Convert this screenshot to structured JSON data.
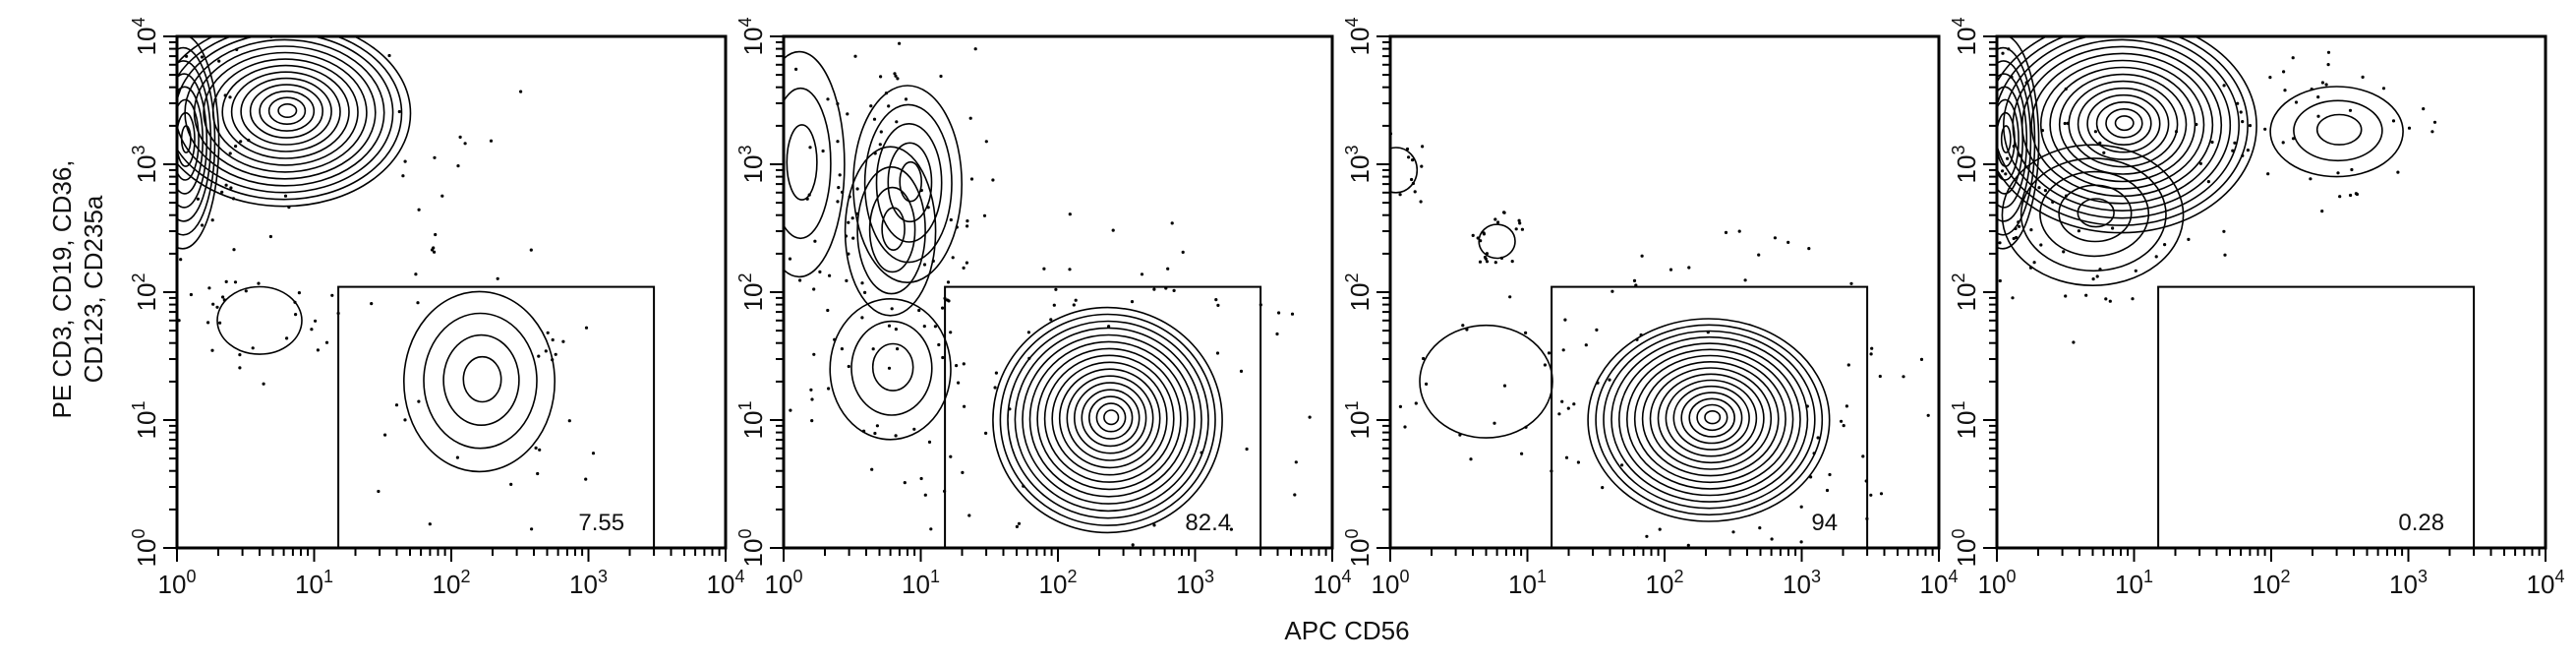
{
  "chart_data": {
    "type": "contour",
    "x_axis_label": "APC CD56",
    "y_axis_label_lines": [
      "PE CD3, CD19, CD36,",
      "CD123, CD235a"
    ],
    "xscale": "log",
    "yscale": "log",
    "xlim": [
      1,
      10000
    ],
    "ylim": [
      1,
      10000
    ],
    "tick_base": "10",
    "tick_exponents": [
      "0",
      "1",
      "2",
      "3",
      "4"
    ],
    "gate": {
      "x_range": [
        15,
        3000
      ],
      "y_range": [
        1,
        110
      ]
    },
    "panels": [
      {
        "gate_percent": "7.55",
        "populations": [
          {
            "x": 6,
            "y": 2500,
            "sx": 0.42,
            "sy": 0.33,
            "levels": 14
          },
          {
            "x": 1.1,
            "y": 1500,
            "sx": 0.12,
            "sy": 0.38,
            "levels": 8
          },
          {
            "x": 160,
            "y": 20,
            "sx": 0.25,
            "sy": 0.32,
            "levels": 4
          },
          {
            "x": 4,
            "y": 60,
            "sx": 0.14,
            "sy": 0.12,
            "levels": 1
          }
        ]
      },
      {
        "gate_percent": "82.4",
        "populations": [
          {
            "x": 230,
            "y": 10,
            "sx": 0.38,
            "sy": 0.4,
            "levels": 16
          },
          {
            "x": 8,
            "y": 700,
            "sx": 0.18,
            "sy": 0.35,
            "levels": 5
          },
          {
            "x": 6,
            "y": 300,
            "sx": 0.15,
            "sy": 0.3,
            "levels": 4
          },
          {
            "x": 1.3,
            "y": 1000,
            "sx": 0.15,
            "sy": 0.4,
            "levels": 3
          },
          {
            "x": 6,
            "y": 25,
            "sx": 0.2,
            "sy": 0.25,
            "levels": 3
          }
        ]
      },
      {
        "gate_percent": "94",
        "populations": [
          {
            "x": 210,
            "y": 10,
            "sx": 0.4,
            "sy": 0.36,
            "levels": 16
          },
          {
            "x": 1.1,
            "y": 900,
            "sx": 0.07,
            "sy": 0.08,
            "levels": 1
          },
          {
            "x": 6,
            "y": 250,
            "sx": 0.06,
            "sy": 0.06,
            "levels": 1
          },
          {
            "x": 5,
            "y": 20,
            "sx": 0.22,
            "sy": 0.2,
            "levels": 1
          }
        ]
      },
      {
        "gate_percent": "0.28",
        "populations": [
          {
            "x": 8,
            "y": 2000,
            "sx": 0.45,
            "sy": 0.38,
            "levels": 15
          },
          {
            "x": 1.1,
            "y": 1500,
            "sx": 0.12,
            "sy": 0.38,
            "levels": 8
          },
          {
            "x": 5,
            "y": 400,
            "sx": 0.3,
            "sy": 0.25,
            "levels": 5
          },
          {
            "x": 300,
            "y": 1800,
            "sx": 0.22,
            "sy": 0.16,
            "levels": 3
          }
        ]
      }
    ]
  }
}
